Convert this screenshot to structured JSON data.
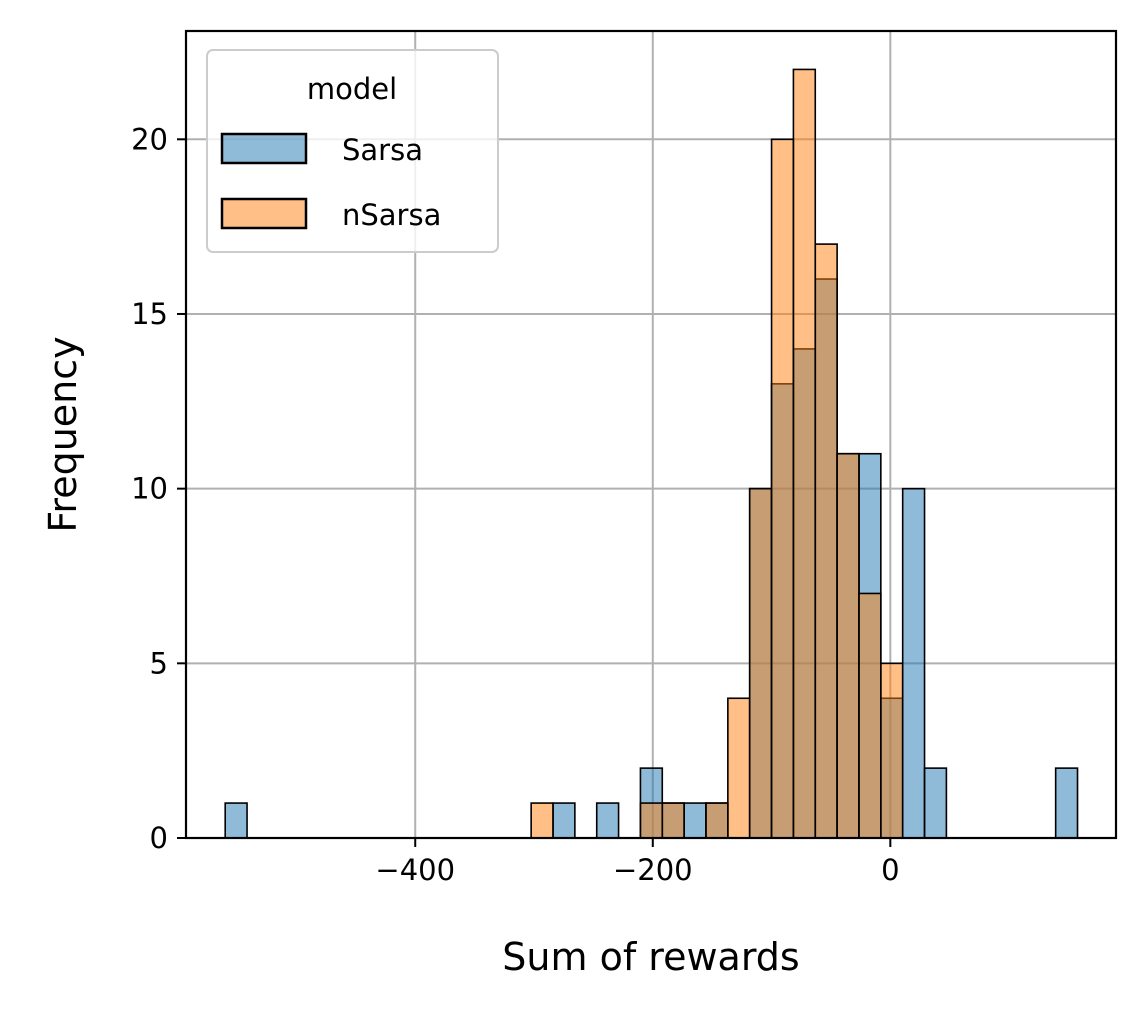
{
  "chart_data": {
    "type": "bar",
    "title": "",
    "xlabel": "Sum of rewards",
    "ylabel": "Frequency",
    "xlim": [
      -593,
      190
    ],
    "ylim": [
      0,
      23.1
    ],
    "xticks": [
      -400,
      -200,
      0
    ],
    "xtick_labels": [
      "−400",
      "−200",
      "0"
    ],
    "yticks": [
      0,
      5,
      10,
      15,
      20
    ],
    "ytick_labels": [
      "0",
      "5",
      "10",
      "15",
      "20"
    ],
    "grid": true,
    "bin_edges": [
      -560,
      -541.6,
      -523.2,
      -504.8,
      -486.4,
      -468,
      -449.6,
      -431.2,
      -412.8,
      -394.4,
      -376,
      -357.6,
      -339.2,
      -320.8,
      -302.4,
      -284,
      -265.6,
      -247.2,
      -228.8,
      -210.4,
      -192,
      -173.6,
      -155.2,
      -136.8,
      -118.4,
      -100,
      -81.6,
      -63.2,
      -44.8,
      -26.4,
      -8,
      10.4,
      28.8,
      47.2,
      65.6,
      84,
      102.4,
      120.8,
      139.2,
      157.6
    ],
    "series": [
      {
        "name": "Sarsa",
        "color": "#1f77b4",
        "values": [
          1,
          0,
          0,
          0,
          0,
          0,
          0,
          0,
          0,
          0,
          0,
          0,
          0,
          0,
          0,
          1,
          0,
          1,
          0,
          2,
          1,
          1,
          1,
          0,
          10,
          13,
          14,
          16,
          11,
          11,
          4,
          10,
          2,
          0,
          0,
          0,
          0,
          0,
          2
        ]
      },
      {
        "name": "nSarsa",
        "color": "#ff7f0e",
        "values": [
          0,
          0,
          0,
          0,
          0,
          0,
          0,
          0,
          0,
          0,
          0,
          0,
          0,
          0,
          1,
          0,
          0,
          0,
          0,
          1,
          1,
          0,
          1,
          4,
          10,
          20,
          22,
          17,
          11,
          7,
          5,
          0,
          0,
          0,
          0,
          0,
          0,
          0,
          0
        ]
      }
    ],
    "legend": {
      "title": "model",
      "position": "top-left"
    }
  }
}
